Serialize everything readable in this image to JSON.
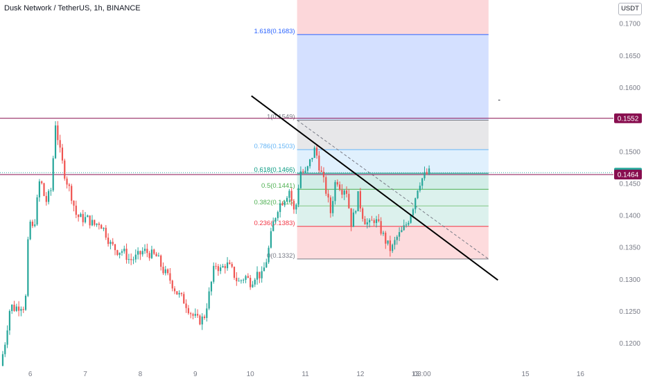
{
  "title": "Dusk Network / TetherUS, 1h, BINANCE",
  "currency": "USDT",
  "colors": {
    "up": "#26a69a",
    "down": "#ef5350",
    "axis_text": "#787b86",
    "resistance_line": "#880e4f",
    "current_price_tag": "#26a69a",
    "level_tag": "#880e4f",
    "trendline": "#000000"
  },
  "price_tags": [
    {
      "label": "0.1552",
      "value": 0.1552,
      "color": "#880e4f"
    },
    {
      "label": "0.1467",
      "value": 0.1467,
      "color": "#26a69a"
    },
    {
      "label": "0.1464",
      "value": 0.1464,
      "color": "#880e4f"
    }
  ],
  "chart_data": {
    "type": "candlestick",
    "title": "Dusk Network / TetherUS, 1h, BINANCE",
    "symbol": "DUSKUSDT",
    "interval": "1h",
    "exchange": "BINANCE",
    "y_axis": {
      "ticks": [
        "0.1700",
        "0.1650",
        "0.1600",
        "0.1550",
        "0.1500",
        "0.1450",
        "0.1400",
        "0.1350",
        "0.1300",
        "0.1250",
        "0.1200"
      ],
      "tick_values": [
        0.17,
        0.165,
        0.16,
        0.155,
        0.15,
        0.145,
        0.14,
        0.135,
        0.13,
        0.125,
        0.12
      ],
      "range": [
        0.1165,
        0.1737
      ],
      "position": "right"
    },
    "x_axis": {
      "ticks": [
        "6",
        "7",
        "8",
        "9",
        "10",
        "11",
        "12",
        "13",
        "03:00",
        "15",
        "16"
      ],
      "tick_positions_days": [
        6,
        7,
        8,
        9,
        10,
        11,
        12,
        13,
        13.125,
        15,
        16
      ],
      "range_days": [
        5.45,
        16.6
      ]
    },
    "candles": {
      "start_day": 5.5,
      "end_day": 13.28,
      "anchors": [
        [
          5.5,
          0.1165
        ],
        [
          5.58,
          0.12
        ],
        [
          5.68,
          0.126
        ],
        [
          5.75,
          0.1255
        ],
        [
          5.88,
          0.126
        ],
        [
          5.95,
          0.1255
        ],
        [
          6.02,
          0.1395
        ],
        [
          6.1,
          0.1375
        ],
        [
          6.22,
          0.146
        ],
        [
          6.32,
          0.142
        ],
        [
          6.42,
          0.144
        ],
        [
          6.5,
          0.1545
        ],
        [
          6.58,
          0.15
        ],
        [
          6.68,
          0.146
        ],
        [
          6.78,
          0.1435
        ],
        [
          6.88,
          0.14
        ],
        [
          6.98,
          0.1395
        ],
        [
          7.08,
          0.1395
        ],
        [
          7.2,
          0.1385
        ],
        [
          7.3,
          0.139
        ],
        [
          7.4,
          0.1375
        ],
        [
          7.5,
          0.1355
        ],
        [
          7.62,
          0.1345
        ],
        [
          7.72,
          0.1345
        ],
        [
          7.85,
          0.133
        ],
        [
          7.98,
          0.1335
        ],
        [
          8.1,
          0.1345
        ],
        [
          8.22,
          0.134
        ],
        [
          8.35,
          0.1335
        ],
        [
          8.45,
          0.1315
        ],
        [
          8.58,
          0.13
        ],
        [
          8.7,
          0.128
        ],
        [
          8.85,
          0.1265
        ],
        [
          8.98,
          0.1245
        ],
        [
          9.1,
          0.1235
        ],
        [
          9.2,
          0.124
        ],
        [
          9.3,
          0.128
        ],
        [
          9.4,
          0.1325
        ],
        [
          9.5,
          0.1315
        ],
        [
          9.6,
          0.1325
        ],
        [
          9.7,
          0.1315
        ],
        [
          9.82,
          0.1295
        ],
        [
          9.95,
          0.1305
        ],
        [
          10.05,
          0.1295
        ],
        [
          10.15,
          0.131
        ],
        [
          10.25,
          0.1305
        ],
        [
          10.35,
          0.1335
        ],
        [
          10.45,
          0.1385
        ],
        [
          10.55,
          0.1415
        ],
        [
          10.65,
          0.1425
        ],
        [
          10.75,
          0.144
        ],
        [
          10.85,
          0.14
        ],
        [
          10.95,
          0.147
        ],
        [
          11.05,
          0.1465
        ],
        [
          11.15,
          0.149
        ],
        [
          11.22,
          0.1505
        ],
        [
          11.3,
          0.1475
        ],
        [
          11.4,
          0.1445
        ],
        [
          11.5,
          0.1405
        ],
        [
          11.6,
          0.146
        ],
        [
          11.7,
          0.144
        ],
        [
          11.78,
          0.1445
        ],
        [
          11.88,
          0.1385
        ],
        [
          12.0,
          0.143
        ],
        [
          12.1,
          0.1395
        ],
        [
          12.2,
          0.1385
        ],
        [
          12.3,
          0.1395
        ],
        [
          12.4,
          0.138
        ],
        [
          12.5,
          0.136
        ],
        [
          12.6,
          0.1345
        ],
        [
          12.7,
          0.1365
        ],
        [
          12.8,
          0.1375
        ],
        [
          12.9,
          0.139
        ],
        [
          13.0,
          0.1415
        ],
        [
          13.1,
          0.145
        ],
        [
          13.2,
          0.1462
        ],
        [
          13.28,
          0.1467
        ]
      ]
    },
    "horizontal_levels": [
      {
        "price": 0.1552,
        "color": "#880e4f"
      },
      {
        "price": 0.1467,
        "color": "#26a69a",
        "dotted": true
      },
      {
        "price": 0.1464,
        "color": "#880e4f"
      }
    ],
    "fibonacci": {
      "from_day": 10.85,
      "to_day": 14.33,
      "levels": [
        {
          "label": "0(0.1332)",
          "ratio": 0,
          "price": 0.1332,
          "line_color": "#787b86",
          "text_color": "#787b86",
          "fill": "#f23645",
          "fill_alpha": 0.18
        },
        {
          "label": "0.236(0.1383)",
          "ratio": 0.236,
          "price": 0.1383,
          "line_color": "#f23645",
          "text_color": "#f23645",
          "fill": "#089981",
          "fill_alpha": 0.14
        },
        {
          "label": "0.382(0.1415)",
          "ratio": 0.382,
          "price": 0.1415,
          "line_color": "#81c784",
          "text_color": "#4caf50",
          "fill": "#089981",
          "fill_alpha": 0.14
        },
        {
          "label": "0.5(0.1441)",
          "ratio": 0.5,
          "price": 0.1441,
          "line_color": "#4caf50",
          "text_color": "#4caf50",
          "fill": "#089981",
          "fill_alpha": 0.18
        },
        {
          "label": "0.618(0.1466)",
          "ratio": 0.618,
          "price": 0.1466,
          "line_color": "#089981",
          "text_color": "#089981",
          "fill": "#64b5f6",
          "fill_alpha": 0.2
        },
        {
          "label": "0.786(0.1503)",
          "ratio": 0.786,
          "price": 0.1503,
          "line_color": "#64b5f6",
          "text_color": "#64b5f6",
          "fill": "#787b86",
          "fill_alpha": 0.18
        },
        {
          "label": "1(0.1549)",
          "ratio": 1,
          "price": 0.1549,
          "line_color": "#787b86",
          "text_color": "#787b86",
          "fill": "#2962ff",
          "fill_alpha": 0.2
        },
        {
          "label": "1.618(0.1683)",
          "ratio": 1.618,
          "price": 0.1683,
          "line_color": "#2962ff",
          "text_color": "#2962ff",
          "fill": "#f23645",
          "fill_alpha": 0.2
        }
      ],
      "top_fill_to_price": 0.1737,
      "base_line": {
        "from": [
          10.85,
          0.1549
        ],
        "to": [
          14.33,
          0.1332
        ],
        "style": "dashed"
      }
    },
    "trendline": {
      "from": [
        10.02,
        0.1587
      ],
      "to": [
        14.5,
        0.1299
      ],
      "color": "#000000"
    },
    "annotations": [
      {
        "text": "-",
        "day": 14.5,
        "price": 0.1577
      }
    ]
  }
}
